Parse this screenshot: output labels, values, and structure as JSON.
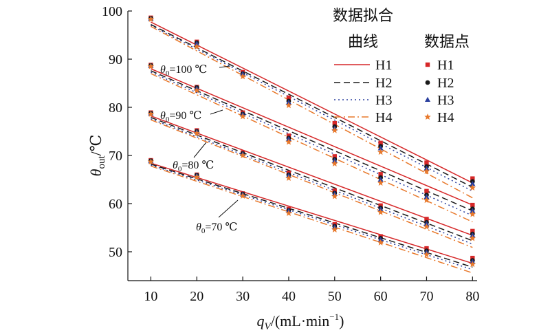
{
  "chart_data": {
    "type": "line",
    "xlabel": {
      "main": "q",
      "sub": "V",
      "tail": "/(mL·min",
      "sup": "−1",
      "end": ")"
    },
    "ylabel": {
      "main": "θ",
      "sub": "out",
      "tail": "/℃"
    },
    "xlim": [
      5,
      81
    ],
    "ylim": [
      44,
      100
    ],
    "xticks": [
      10,
      20,
      30,
      40,
      50,
      60,
      70,
      80
    ],
    "yticks": [
      50,
      60,
      70,
      80,
      90,
      100
    ],
    "legend": {
      "placement": "top-right",
      "fit_title": [
        "数据拟合",
        "曲线"
      ],
      "points_title": "数据点",
      "entries": [
        "H1",
        "H2",
        "H3",
        "H4"
      ]
    },
    "colors": {
      "H1": "#d62728",
      "H2": "#1a1a1a",
      "H3": "#2a3f9e",
      "H4": "#e8782a"
    },
    "markers": {
      "H1": "square",
      "H2": "circle",
      "H3": "triangle",
      "H4": "star"
    },
    "line_styles": {
      "H1": "solid",
      "H2": "dashed",
      "H3": "dotted",
      "H4": "dashdot"
    },
    "x": [
      10,
      20,
      30,
      40,
      50,
      60,
      70,
      80
    ],
    "groups": [
      {
        "label": {
          "pre": "θ",
          "sub": "0",
          "post": "=100 ℃"
        },
        "fits": [
          [
            97.7,
            64.3
          ],
          [
            97.2,
            63.4
          ],
          [
            97.0,
            62.6
          ],
          [
            96.8,
            61.2
          ]
        ],
        "points": {
          "H1": [
            98.6,
            93.6,
            87.3,
            82.0,
            76.7,
            72.6,
            68.5,
            65.2
          ],
          "H2": [
            98.5,
            93.4,
            87.0,
            81.3,
            76.0,
            71.9,
            67.7,
            64.6
          ],
          "H3": [
            98.4,
            93.2,
            86.9,
            81.0,
            75.6,
            71.5,
            67.3,
            64.1
          ],
          "H4": [
            98.3,
            92.6,
            86.4,
            80.4,
            75.2,
            70.7,
            66.7,
            63.3
          ]
        }
      },
      {
        "label": {
          "pre": "θ",
          "sub": "0",
          "post": "=90 ℃"
        },
        "fits": [
          [
            88.0,
            59.7
          ],
          [
            87.6,
            58.5
          ],
          [
            87.3,
            57.5
          ],
          [
            87.0,
            56.2
          ]
        ],
        "points": {
          "H1": [
            88.8,
            84.2,
            78.9,
            74.1,
            69.8,
            66.1,
            62.6,
            59.7
          ],
          "H2": [
            88.7,
            84.1,
            78.6,
            73.6,
            69.2,
            65.4,
            61.8,
            58.9
          ],
          "H3": [
            88.6,
            83.9,
            78.5,
            73.4,
            68.9,
            65.0,
            61.4,
            58.5
          ],
          "H4": [
            88.5,
            83.5,
            78.1,
            72.8,
            68.3,
            64.3,
            60.7,
            57.8
          ]
        }
      },
      {
        "label": {
          "pre": "θ",
          "sub": "0",
          "post": "=80 ℃"
        },
        "fits": [
          [
            78.2,
            53.4
          ],
          [
            77.9,
            52.3
          ],
          [
            77.6,
            51.6
          ],
          [
            77.4,
            50.9
          ]
        ],
        "points": {
          "H1": [
            78.9,
            75.2,
            70.6,
            66.4,
            62.7,
            59.6,
            56.8,
            54.3
          ],
          "H2": [
            78.8,
            75.0,
            70.4,
            66.0,
            62.2,
            59.1,
            56.1,
            53.7
          ],
          "H3": [
            78.7,
            74.9,
            70.3,
            65.8,
            62.0,
            58.8,
            55.8,
            53.4
          ],
          "H4": [
            78.6,
            74.6,
            70.0,
            65.3,
            61.5,
            58.2,
            55.2,
            52.8
          ]
        }
      },
      {
        "label": {
          "pre": "θ",
          "sub": "0",
          "post": "=70 ℃"
        },
        "fits": [
          [
            68.4,
            47.6
          ],
          [
            68.2,
            46.8
          ],
          [
            68.0,
            46.3
          ],
          [
            67.8,
            45.6
          ]
        ],
        "points": {
          "H1": [
            69.0,
            66.0,
            62.1,
            58.9,
            55.7,
            53.2,
            50.7,
            48.7
          ],
          "H2": [
            68.9,
            65.9,
            62.0,
            58.6,
            55.3,
            52.8,
            50.2,
            48.2
          ],
          "H3": [
            68.8,
            65.8,
            61.9,
            58.5,
            55.1,
            52.5,
            49.9,
            47.9
          ],
          "H4": [
            68.7,
            65.5,
            61.6,
            58.0,
            54.6,
            51.9,
            49.4,
            47.4
          ]
        }
      }
    ]
  }
}
